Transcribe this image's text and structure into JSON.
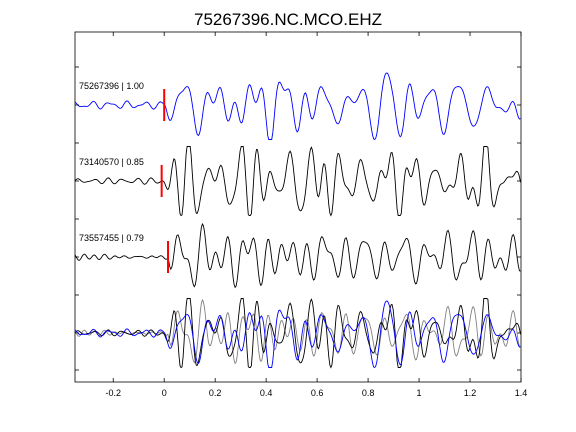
{
  "chart_data": {
    "type": "line",
    "title": "75267396.NC.MCO.EHZ",
    "xlabel": "",
    "ylabel": "",
    "xlim": [
      -0.35,
      1.4
    ],
    "xticks": [
      -0.2,
      0,
      0.2,
      0.4,
      0.6,
      0.8,
      1,
      1.2,
      1.4
    ],
    "xtick_labels": [
      "-0.2",
      "0",
      "0.2",
      "0.4",
      "0.6",
      "0.8",
      "1",
      "1.2",
      "1.4"
    ],
    "grid": false,
    "traces": [
      {
        "label": "75267396 | 1.00",
        "color": "#0000ff",
        "pick_time": 0.0
      },
      {
        "label": "73140570 | 0.85",
        "color": "#000000",
        "pick_time": -0.01
      },
      {
        "label": "73557455 | 0.79",
        "color": "#000000",
        "pick_time": 0.015
      }
    ],
    "stack": {
      "label": "",
      "colors": [
        "#0000ff",
        "#000000",
        "#808080"
      ]
    },
    "pick_marker_color": "#ff0000"
  }
}
